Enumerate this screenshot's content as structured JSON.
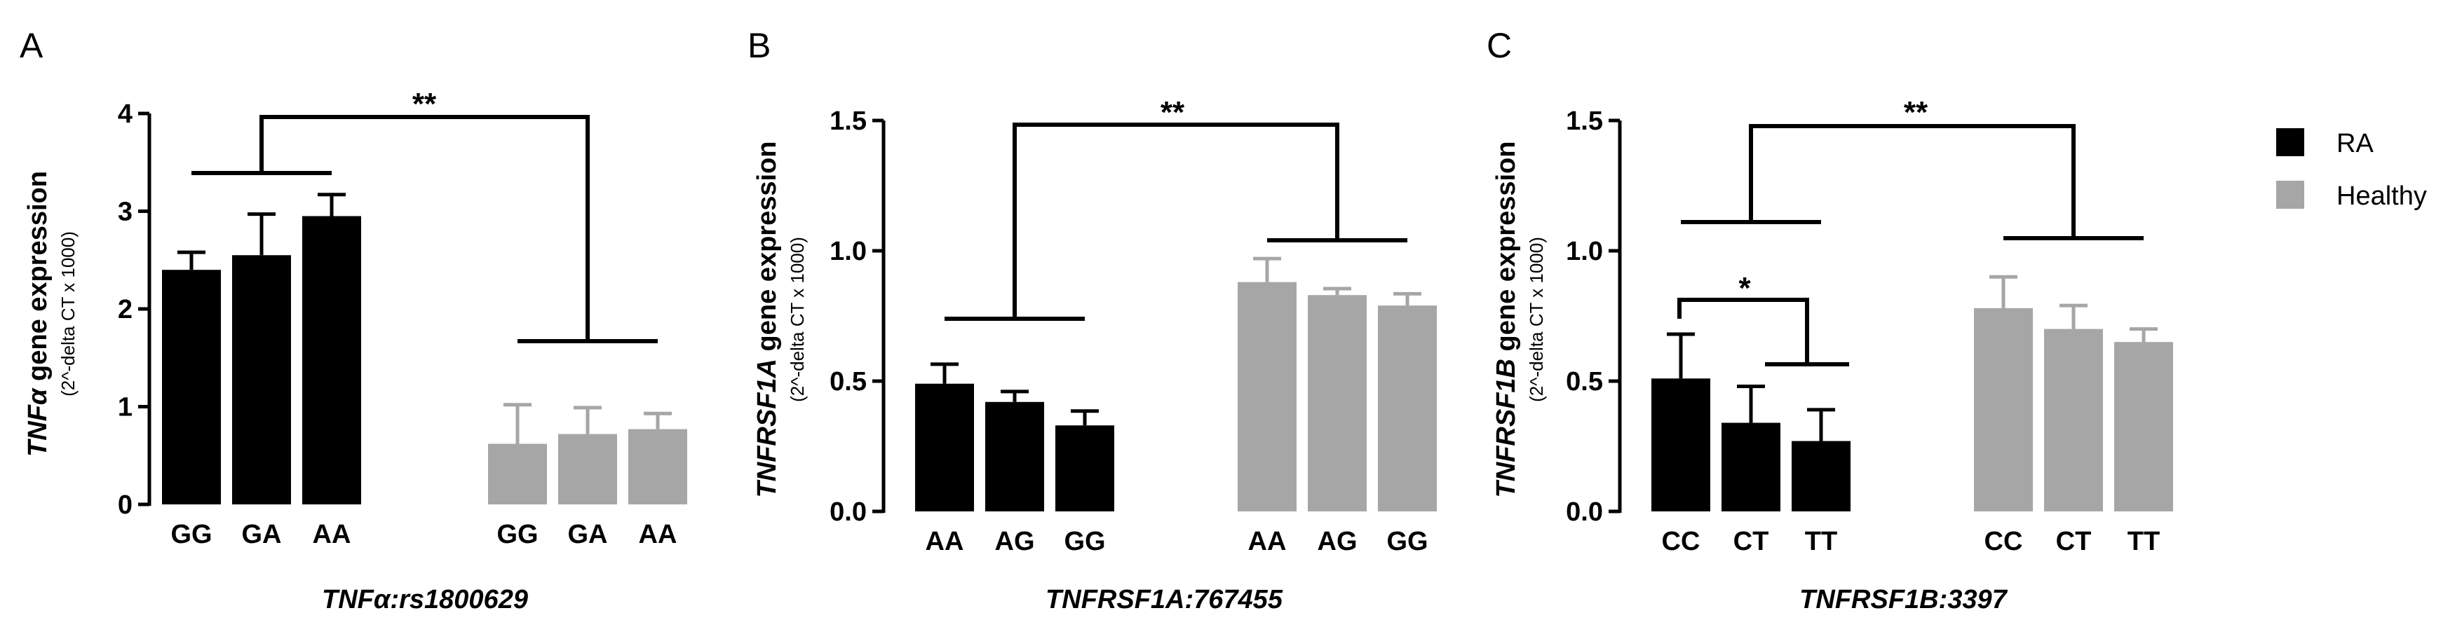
{
  "colors": {
    "RA": "#000000",
    "Healthy": "#a6a6a6",
    "axis": "#000000"
  },
  "legend": [
    {
      "name": "RA",
      "color": "#000000"
    },
    {
      "name": "Healthy",
      "color": "#a6a6a6"
    }
  ],
  "chart_data": [
    {
      "type": "bar",
      "panel": "A",
      "xlabel": "TNFα:rs1800629",
      "ylabel_gene": "TNFα",
      "ylabel_rest": " gene expression",
      "ylabel_sub": "(2^-delta CT x 1000)",
      "ylim": [
        0,
        4
      ],
      "yticks": [
        "0",
        "1",
        "2",
        "3",
        "4"
      ],
      "yticks_values": [
        0,
        1,
        2,
        3,
        4
      ],
      "series": [
        {
          "name": "RA",
          "categories": [
            "GG",
            "GA",
            "AA"
          ],
          "values": [
            2.4,
            2.55,
            2.95
          ],
          "errors": [
            0.18,
            0.42,
            0.22
          ]
        },
        {
          "name": "Healthy",
          "categories": [
            "GG",
            "GA",
            "AA"
          ],
          "values": [
            0.62,
            0.72,
            0.77
          ],
          "errors": [
            0.4,
            0.27,
            0.16
          ]
        }
      ],
      "annotations": [
        {
          "text": "**",
          "between": [
            "RA",
            "Healthy"
          ]
        }
      ]
    },
    {
      "type": "bar",
      "panel": "B",
      "xlabel": "TNFRSF1A:767455",
      "ylabel_gene": "TNFRSF1A",
      "ylabel_rest": " gene expression",
      "ylabel_sub": "(2^-delta CT x 1000)",
      "ylim": [
        0,
        1.5
      ],
      "yticks": [
        "0.0",
        "0.5",
        "1.0",
        "1.5"
      ],
      "yticks_values": [
        0,
        0.5,
        1.0,
        1.5
      ],
      "series": [
        {
          "name": "RA",
          "categories": [
            "AA",
            "AG",
            "GG"
          ],
          "values": [
            0.49,
            0.42,
            0.33
          ],
          "errors": [
            0.075,
            0.04,
            0.055
          ]
        },
        {
          "name": "Healthy",
          "categories": [
            "AA",
            "AG",
            "GG"
          ],
          "values": [
            0.88,
            0.83,
            0.79
          ],
          "errors": [
            0.09,
            0.025,
            0.045
          ]
        }
      ],
      "annotations": [
        {
          "text": "**",
          "between": [
            "RA",
            "Healthy"
          ]
        }
      ]
    },
    {
      "type": "bar",
      "panel": "C",
      "xlabel": "TNFRSF1B:3397",
      "ylabel_gene": "TNFRSF1B",
      "ylabel_rest": " gene expression",
      "ylabel_sub": "(2^-delta CT x 1000)",
      "ylim": [
        0,
        1.5
      ],
      "yticks": [
        "0.0",
        "0.5",
        "1.0",
        "1.5"
      ],
      "yticks_values": [
        0,
        0.5,
        1.0,
        1.5
      ],
      "series": [
        {
          "name": "RA",
          "categories": [
            "CC",
            "CT",
            "TT"
          ],
          "values": [
            0.51,
            0.34,
            0.27
          ],
          "errors": [
            0.17,
            0.14,
            0.12
          ]
        },
        {
          "name": "Healthy",
          "categories": [
            "CC",
            "CT",
            "TT"
          ],
          "values": [
            0.78,
            0.7,
            0.65
          ],
          "errors": [
            0.12,
            0.09,
            0.05
          ]
        }
      ],
      "annotations": [
        {
          "text": "**",
          "between": [
            "RA",
            "Healthy"
          ]
        },
        {
          "text": "*",
          "between": [
            "CC",
            "CT-TT"
          ]
        }
      ]
    }
  ]
}
